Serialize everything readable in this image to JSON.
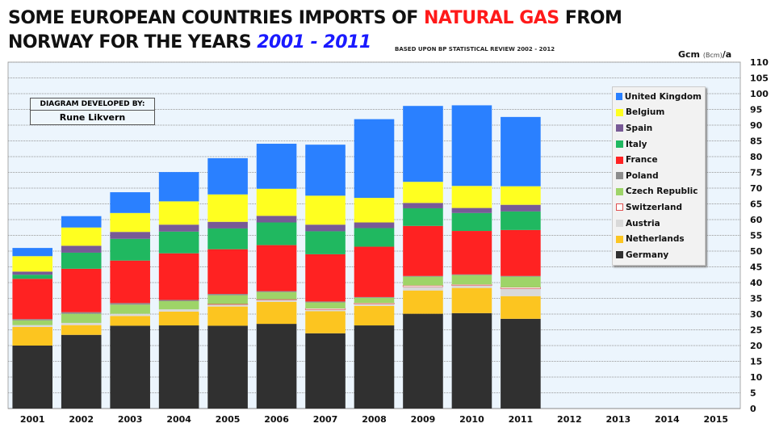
{
  "header": {
    "title_line1_a": "SOME EUROPEAN COUNTRIES IMPORTS OF ",
    "title_line1_b": "NATURAL GAS",
    "title_line1_c": " FROM",
    "title_line2_a": "NORWAY FOR THE YEARS ",
    "title_line2_b": "2001 - 2011",
    "subtitle": "BASED UPON BP STATISTICAL REVIEW 2002 - 2012",
    "unit_a": "Gcm ",
    "unit_b": "(Bcm)",
    "unit_c": "/a"
  },
  "credit": {
    "line1": "DIAGRAM DEVELOPED BY:",
    "line2": "Rune Likvern"
  },
  "colors": {
    "Germany": "#303030",
    "Netherlands": "#fcc520",
    "Austria": "#d9d9d9",
    "Switzerland": "#ffffff",
    "Czech Republic": "#9ed468",
    "Poland": "#8c8c8c",
    "France": "#ff2222",
    "Italy": "#20b860",
    "Spain": "#785a96",
    "Belgium": "#ffff20",
    "United Kingdom": "#2a80ff",
    "plot_bg": "#ecf5fd",
    "grid": "#999999"
  },
  "chart_data": {
    "type": "bar",
    "stacked": true,
    "title": "SOME EUROPEAN COUNTRIES IMPORTS OF NATURAL GAS FROM NORWAY FOR THE YEARS 2001 - 2011",
    "subtitle": "BASED UPON BP STATISTICAL REVIEW 2002 - 2012",
    "ylabel": "Gcm (Bcm)/a",
    "xlabel": "",
    "ylim": [
      0,
      110
    ],
    "yticks": [
      0,
      5,
      10,
      15,
      20,
      25,
      30,
      35,
      40,
      45,
      50,
      55,
      60,
      65,
      70,
      75,
      80,
      85,
      90,
      95,
      100,
      105,
      110
    ],
    "grid": true,
    "legend_position": "right",
    "categories": [
      "2001",
      "2002",
      "2003",
      "2004",
      "2005",
      "2006",
      "2007",
      "2008",
      "2009",
      "2010",
      "2011",
      "2012",
      "2013",
      "2014",
      "2015"
    ],
    "series": [
      {
        "name": "Germany",
        "values": [
          20.0,
          23.4,
          26.3,
          26.4,
          26.3,
          26.9,
          23.9,
          26.4,
          30.1,
          30.3,
          28.5,
          null,
          null,
          null,
          null
        ]
      },
      {
        "name": "Netherlands",
        "values": [
          5.9,
          3.1,
          3.1,
          4.4,
          6.1,
          7.0,
          7.0,
          6.2,
          7.4,
          8.0,
          7.2,
          null,
          null,
          null,
          null
        ]
      },
      {
        "name": "Austria",
        "values": [
          0.6,
          0.7,
          0.7,
          0.7,
          0.7,
          0.6,
          0.5,
          0.6,
          1.2,
          0.8,
          2.4,
          null,
          null,
          null,
          null
        ]
      },
      {
        "name": "Switzerland",
        "values": [
          0.0,
          0.0,
          0.0,
          0.0,
          0.1,
          0.2,
          0.4,
          0.3,
          0.4,
          0.3,
          0.4,
          null,
          null,
          null,
          null
        ]
      },
      {
        "name": "Czech Republic",
        "values": [
          1.5,
          2.9,
          2.9,
          2.6,
          2.8,
          2.3,
          1.9,
          1.7,
          2.8,
          3.0,
          3.4,
          null,
          null,
          null,
          null
        ]
      },
      {
        "name": "Poland",
        "values": [
          0.4,
          0.5,
          0.5,
          0.4,
          0.4,
          0.3,
          0.3,
          0.2,
          0.2,
          0.2,
          0.2,
          null,
          null,
          null,
          null
        ]
      },
      {
        "name": "France",
        "values": [
          12.8,
          13.8,
          13.5,
          14.8,
          14.2,
          14.6,
          15.0,
          16.0,
          15.9,
          13.8,
          14.6,
          null,
          null,
          null,
          null
        ]
      },
      {
        "name": "Italy",
        "values": [
          1.3,
          5.1,
          6.9,
          6.9,
          6.6,
          7.2,
          7.3,
          5.9,
          5.6,
          5.7,
          5.9,
          null,
          null,
          null,
          null
        ]
      },
      {
        "name": "Spain",
        "values": [
          1.0,
          2.2,
          2.2,
          2.2,
          2.1,
          2.1,
          2.1,
          1.8,
          1.7,
          1.6,
          2.1,
          null,
          null,
          null,
          null
        ]
      },
      {
        "name": "Belgium",
        "values": [
          4.9,
          5.8,
          6.0,
          7.4,
          8.7,
          8.6,
          9.2,
          7.8,
          6.7,
          7.0,
          5.9,
          null,
          null,
          null,
          null
        ]
      },
      {
        "name": "United Kingdom",
        "values": [
          2.6,
          3.6,
          6.6,
          9.3,
          11.5,
          14.3,
          16.2,
          25.0,
          24.1,
          25.6,
          22.0,
          null,
          null,
          null,
          null
        ]
      }
    ]
  }
}
